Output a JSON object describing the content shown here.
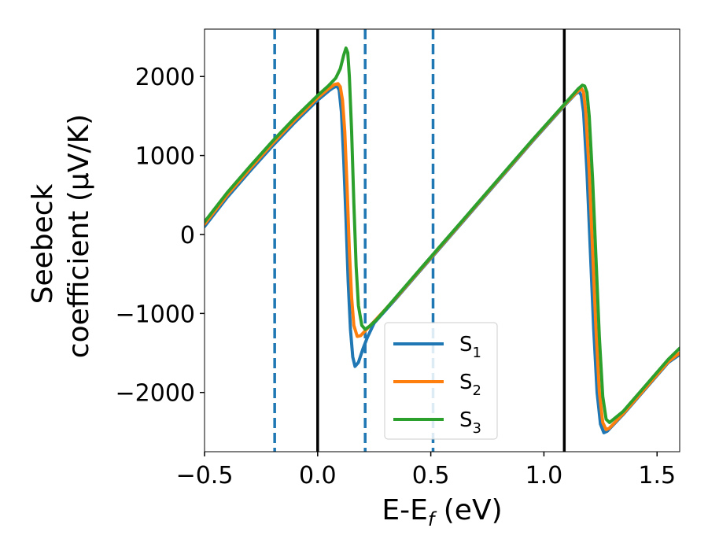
{
  "chart_data": {
    "type": "line",
    "title": "",
    "xlabel_main": "E-E",
    "xlabel_sub": "f",
    "xlabel_unit": " (eV)",
    "ylabel_line1": "Seebeck",
    "ylabel_line2": "coefficient  (μV/K)",
    "xlim": [
      -0.5,
      1.6
    ],
    "ylim": [
      -2750,
      2600
    ],
    "xticks": [
      {
        "value": -0.5,
        "label": "−0.5"
      },
      {
        "value": 0.0,
        "label": "0.0"
      },
      {
        "value": 0.5,
        "label": "0.5"
      },
      {
        "value": 1.0,
        "label": "1.0"
      },
      {
        "value": 1.5,
        "label": "1.5"
      }
    ],
    "yticks": [
      {
        "value": 2000,
        "label": "2000"
      },
      {
        "value": 1000,
        "label": "1000"
      },
      {
        "value": 0,
        "label": "0"
      },
      {
        "value": -1000,
        "label": "−1000"
      },
      {
        "value": -2000,
        "label": "−2000"
      }
    ],
    "vlines": [
      {
        "x": 0.0,
        "style": "solid",
        "color": "#000000"
      },
      {
        "x": 1.09,
        "style": "solid",
        "color": "#000000"
      },
      {
        "x": -0.19,
        "style": "dashed",
        "color": "#1f77b4"
      },
      {
        "x": 0.21,
        "style": "dashed",
        "color": "#1f77b4"
      },
      {
        "x": 0.51,
        "style": "dashed",
        "color": "#1f77b4"
      }
    ],
    "legend_position": "lower-center",
    "grid": false,
    "series": [
      {
        "name": "S",
        "sub": "1",
        "color": "#1f77b4",
        "points": [
          [
            -0.5,
            100
          ],
          [
            -0.4,
            470
          ],
          [
            -0.3,
            800
          ],
          [
            -0.2,
            1120
          ],
          [
            -0.1,
            1420
          ],
          [
            0.0,
            1700
          ],
          [
            0.05,
            1820
          ],
          [
            0.07,
            1860
          ],
          [
            0.085,
            1880
          ],
          [
            0.095,
            1830
          ],
          [
            0.105,
            1550
          ],
          [
            0.115,
            950
          ],
          [
            0.125,
            200
          ],
          [
            0.135,
            -600
          ],
          [
            0.145,
            -1200
          ],
          [
            0.155,
            -1550
          ],
          [
            0.165,
            -1670
          ],
          [
            0.18,
            -1620
          ],
          [
            0.2,
            -1450
          ],
          [
            0.22,
            -1300
          ],
          [
            0.25,
            -1120
          ],
          [
            0.35,
            -800
          ],
          [
            0.45,
            -470
          ],
          [
            0.55,
            -140
          ],
          [
            0.65,
            190
          ],
          [
            0.75,
            520
          ],
          [
            0.85,
            850
          ],
          [
            0.95,
            1180
          ],
          [
            1.05,
            1500
          ],
          [
            1.1,
            1660
          ],
          [
            1.14,
            1780
          ],
          [
            1.155,
            1810
          ],
          [
            1.165,
            1760
          ],
          [
            1.175,
            1550
          ],
          [
            1.19,
            800
          ],
          [
            1.205,
            -200
          ],
          [
            1.22,
            -1200
          ],
          [
            1.235,
            -2000
          ],
          [
            1.25,
            -2400
          ],
          [
            1.265,
            -2510
          ],
          [
            1.28,
            -2490
          ],
          [
            1.35,
            -2280
          ],
          [
            1.45,
            -1950
          ],
          [
            1.55,
            -1620
          ],
          [
            1.6,
            -1520
          ]
        ]
      },
      {
        "name": "S",
        "sub": "2",
        "color": "#ff7f0e",
        "points": [
          [
            -0.5,
            130
          ],
          [
            -0.4,
            500
          ],
          [
            -0.3,
            830
          ],
          [
            -0.2,
            1150
          ],
          [
            -0.1,
            1450
          ],
          [
            0.0,
            1730
          ],
          [
            0.05,
            1850
          ],
          [
            0.075,
            1900
          ],
          [
            0.09,
            1910
          ],
          [
            0.1,
            1870
          ],
          [
            0.11,
            1700
          ],
          [
            0.12,
            1300
          ],
          [
            0.13,
            600
          ],
          [
            0.14,
            -200
          ],
          [
            0.15,
            -800
          ],
          [
            0.16,
            -1150
          ],
          [
            0.175,
            -1290
          ],
          [
            0.19,
            -1280
          ],
          [
            0.21,
            -1220
          ],
          [
            0.25,
            -1100
          ],
          [
            0.35,
            -790
          ],
          [
            0.45,
            -460
          ],
          [
            0.55,
            -130
          ],
          [
            0.65,
            200
          ],
          [
            0.75,
            530
          ],
          [
            0.85,
            860
          ],
          [
            0.95,
            1190
          ],
          [
            1.05,
            1510
          ],
          [
            1.1,
            1670
          ],
          [
            1.145,
            1800
          ],
          [
            1.165,
            1850
          ],
          [
            1.175,
            1800
          ],
          [
            1.185,
            1550
          ],
          [
            1.2,
            800
          ],
          [
            1.215,
            -200
          ],
          [
            1.23,
            -1200
          ],
          [
            1.245,
            -2000
          ],
          [
            1.26,
            -2380
          ],
          [
            1.275,
            -2470
          ],
          [
            1.29,
            -2450
          ],
          [
            1.35,
            -2270
          ],
          [
            1.45,
            -1940
          ],
          [
            1.55,
            -1610
          ],
          [
            1.6,
            -1500
          ]
        ]
      },
      {
        "name": "S",
        "sub": "3",
        "color": "#2ca02c",
        "points": [
          [
            -0.5,
            160
          ],
          [
            -0.4,
            530
          ],
          [
            -0.3,
            860
          ],
          [
            -0.2,
            1180
          ],
          [
            -0.1,
            1480
          ],
          [
            0.0,
            1760
          ],
          [
            0.05,
            1890
          ],
          [
            0.08,
            1980
          ],
          [
            0.1,
            2100
          ],
          [
            0.115,
            2270
          ],
          [
            0.125,
            2360
          ],
          [
            0.133,
            2300
          ],
          [
            0.14,
            2000
          ],
          [
            0.15,
            1300
          ],
          [
            0.16,
            400
          ],
          [
            0.17,
            -400
          ],
          [
            0.18,
            -900
          ],
          [
            0.195,
            -1150
          ],
          [
            0.21,
            -1200
          ],
          [
            0.23,
            -1160
          ],
          [
            0.26,
            -1080
          ],
          [
            0.35,
            -780
          ],
          [
            0.45,
            -450
          ],
          [
            0.55,
            -120
          ],
          [
            0.65,
            210
          ],
          [
            0.75,
            540
          ],
          [
            0.85,
            870
          ],
          [
            0.95,
            1200
          ],
          [
            1.05,
            1520
          ],
          [
            1.1,
            1680
          ],
          [
            1.15,
            1840
          ],
          [
            1.17,
            1890
          ],
          [
            1.18,
            1880
          ],
          [
            1.19,
            1800
          ],
          [
            1.2,
            1500
          ],
          [
            1.215,
            700
          ],
          [
            1.23,
            -300
          ],
          [
            1.245,
            -1300
          ],
          [
            1.26,
            -2050
          ],
          [
            1.275,
            -2340
          ],
          [
            1.29,
            -2380
          ],
          [
            1.35,
            -2240
          ],
          [
            1.45,
            -1910
          ],
          [
            1.55,
            -1580
          ],
          [
            1.6,
            -1440
          ]
        ]
      }
    ]
  }
}
